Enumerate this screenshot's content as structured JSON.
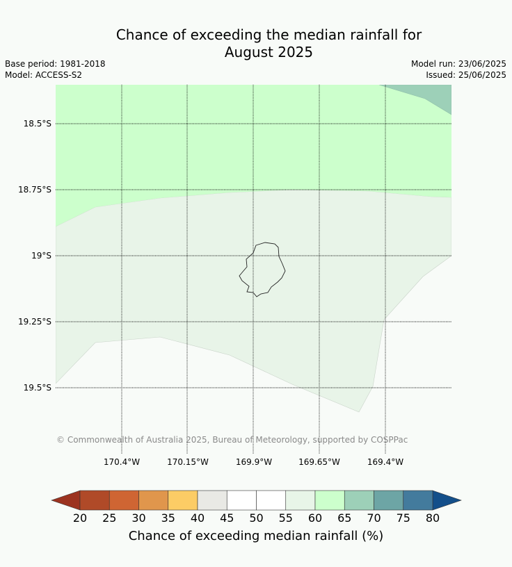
{
  "title": {
    "line1": "Chance of exceeding the median rainfall for",
    "line2": "August 2025"
  },
  "meta": {
    "base_period": "Base period: 1981-2018",
    "model": "Model: ACCESS-S2",
    "model_run": "Model run: 23/06/2025",
    "issued": "Issued: 25/06/2025"
  },
  "map": {
    "latitude_labels": [
      "18.5°S",
      "18.75°S",
      "19°S",
      "19.25°S",
      "19.5°S"
    ],
    "longitude_labels": [
      "170.4°W",
      "170.15°W",
      "169.9°W",
      "169.65°W",
      "169.4°W"
    ],
    "region_colors": {
      "60-65": "#e8f4e8",
      "65-70": "#ccffcc",
      "70-75": "#9dd0b8",
      "50-55": "#f8fbf8"
    },
    "copyright": "© Commonwealth of Australia 2025, Bureau of Meteorology, supported by COSPPac"
  },
  "colorbar": {
    "ticks": [
      "20",
      "25",
      "30",
      "35",
      "40",
      "45",
      "50",
      "55",
      "60",
      "65",
      "70",
      "75",
      "80"
    ],
    "colors": [
      "#b04a28",
      "#cf6533",
      "#e0964c",
      "#fccc65",
      "#e9e9e5",
      "#ffffff",
      "#ffffff",
      "#e8f5e8",
      "#ccffcc",
      "#9dd0b8",
      "#6da5a5",
      "#437b9d"
    ],
    "under_color": "#9c3320",
    "over_color": "#134f8a",
    "label": "Chance of exceeding median rainfall (%)"
  }
}
